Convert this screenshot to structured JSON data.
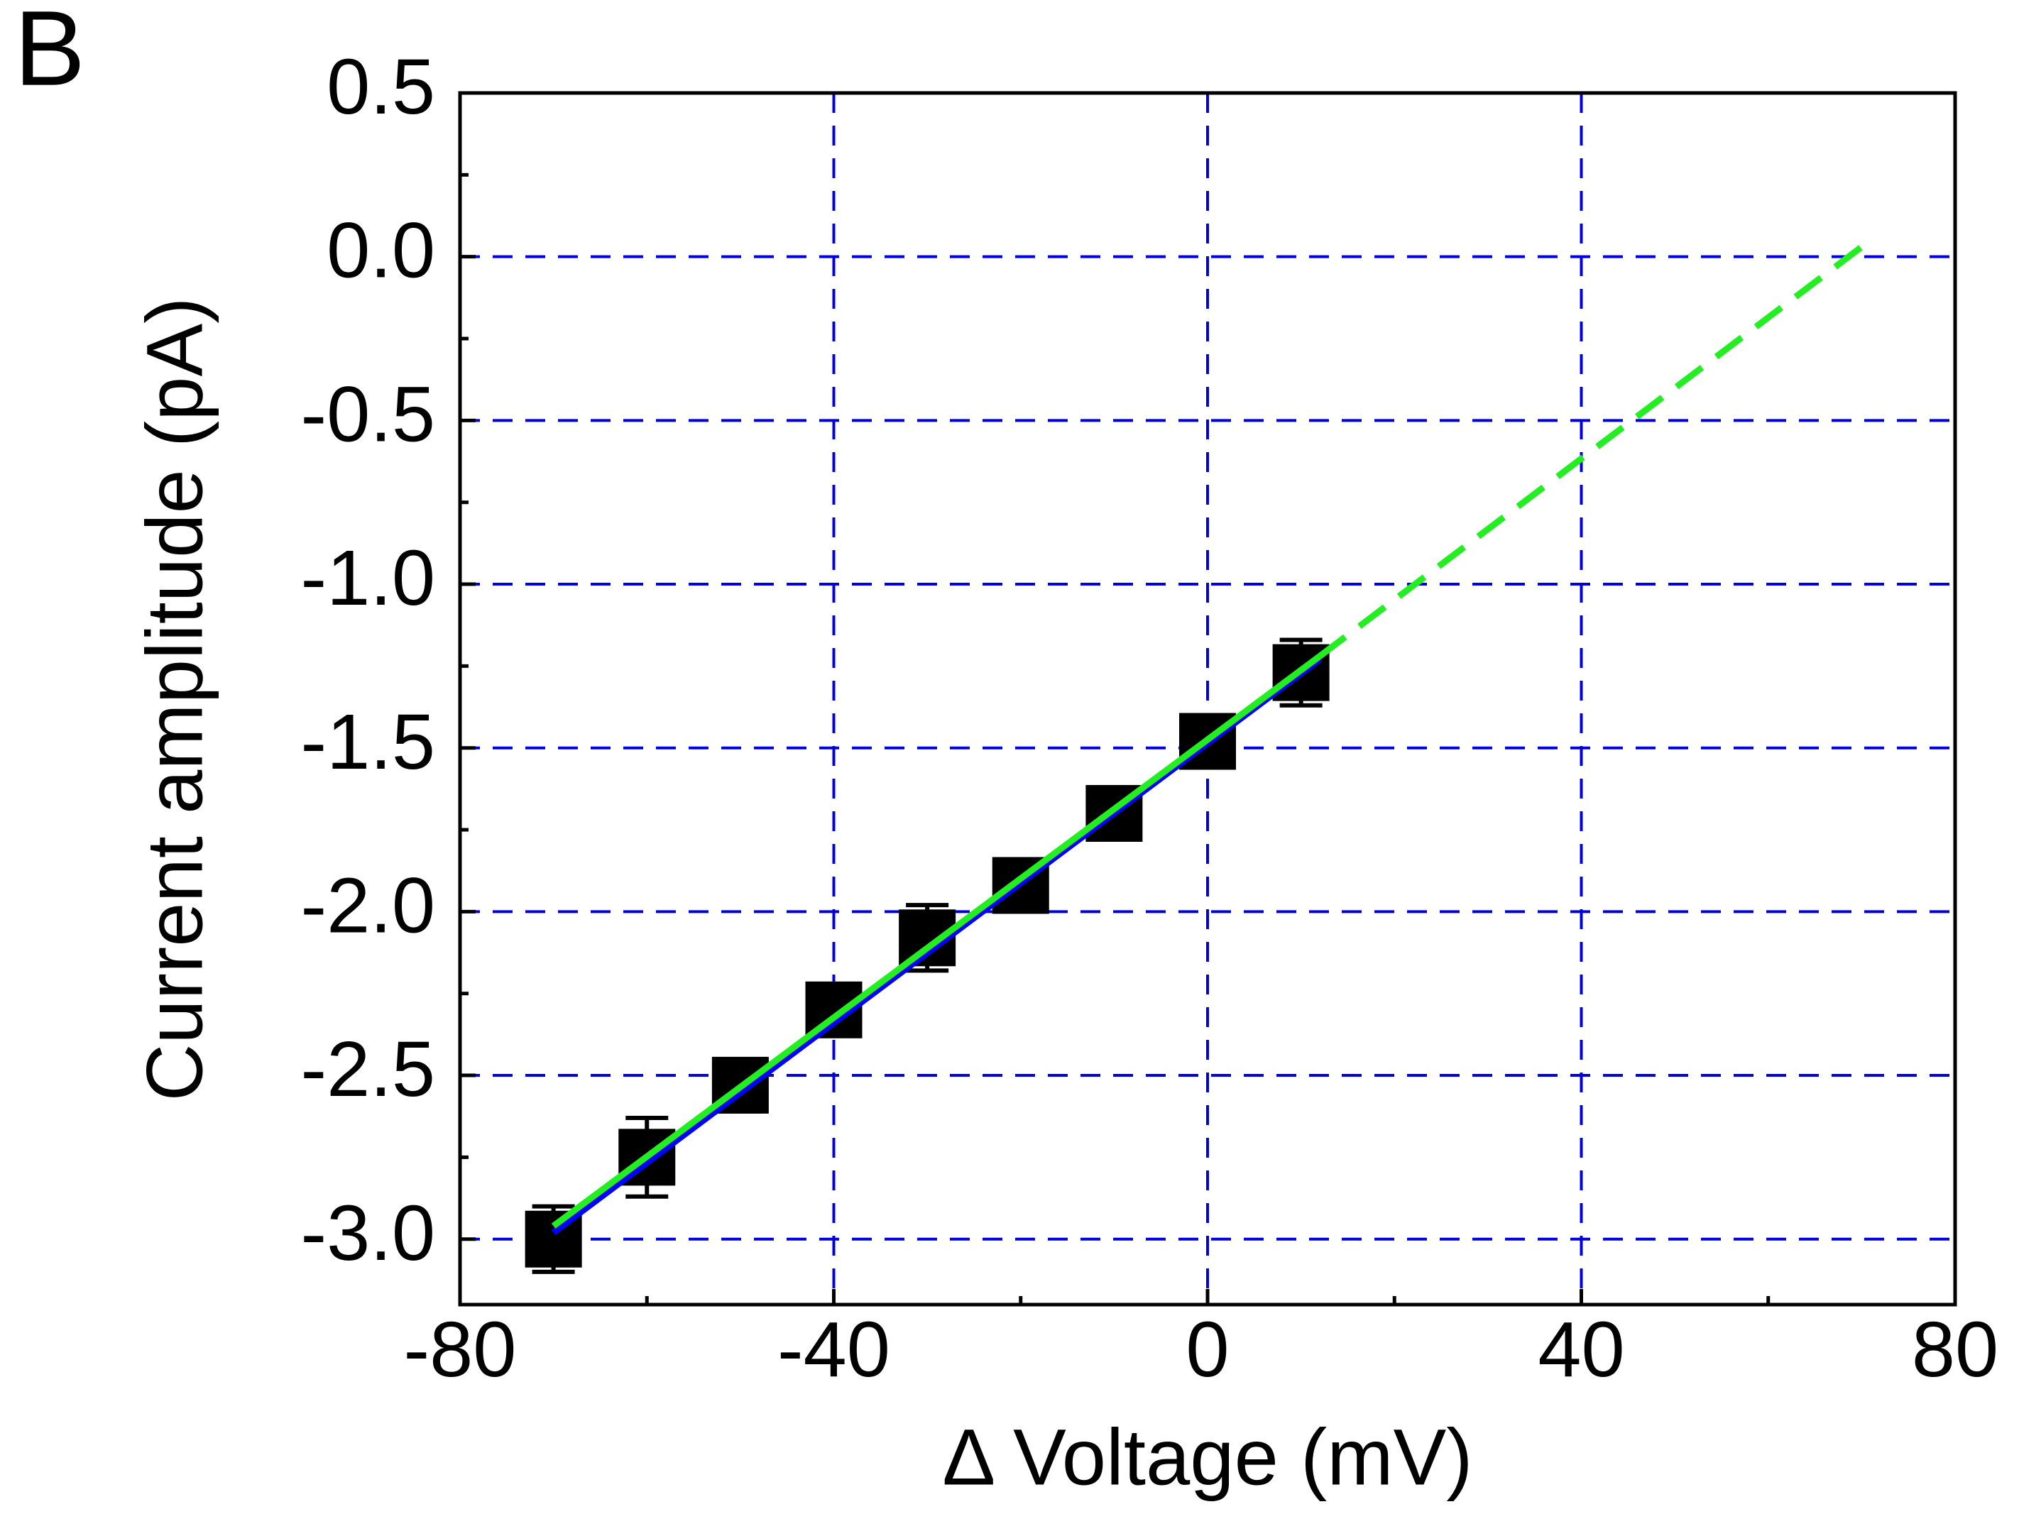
{
  "panel_label": "B",
  "chart_data": {
    "type": "scatter",
    "x_label": "Δ Voltage (mV)",
    "y_label": "Current amplitude (pA)",
    "points": {
      "x": [
        -70,
        -60,
        -50,
        -40,
        -30,
        -20,
        -10,
        0,
        10
      ],
      "values": [
        -3.0,
        -2.75,
        -2.53,
        -2.3,
        -2.08,
        -1.92,
        -1.7,
        -1.48,
        -1.27
      ],
      "errors": [
        0.1,
        0.12,
        0.08,
        0.06,
        0.1,
        0.05,
        0.04,
        0.07,
        0.1
      ],
      "color": "#000000"
    },
    "lines": [
      {
        "x": [
          -70,
          12
        ],
        "values": [
          -2.98,
          -1.23
        ],
        "color": "#0000ff",
        "dashed": false
      },
      {
        "x": [
          -70,
          12
        ],
        "values": [
          -2.96,
          -1.22
        ],
        "color": "#22ee22",
        "dashed": false
      },
      {
        "x": [
          12,
          70
        ],
        "values": [
          -1.22,
          0.03
        ],
        "color": "#22ee22",
        "dashed": true
      }
    ],
    "xlim": [
      -80,
      80
    ],
    "xticks": [
      -80,
      -40,
      0,
      40,
      80
    ],
    "xminorticks": [
      -60,
      -20,
      20,
      60
    ],
    "ylim": [
      -3.2,
      0.5
    ],
    "yticks": [
      0.5,
      {
        "value": 0,
        "label": "0.0"
      },
      -0.5,
      {
        "value": -1,
        "label": "-1.0"
      },
      -1.5,
      {
        "value": -2,
        "label": "-2.0"
      },
      -2.5,
      {
        "value": -3,
        "label": "-3.0"
      }
    ],
    "yminorticks": [
      0.25,
      -0.25,
      -0.75,
      -1.25,
      -1.75,
      -2.25,
      -2.75
    ],
    "grid": true,
    "grid_color": "#0000dd"
  }
}
